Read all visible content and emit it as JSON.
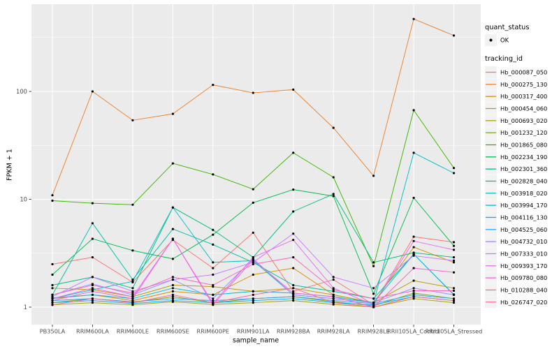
{
  "figure": {
    "legend": {
      "quant_status_title": "quant_status",
      "quant_status_items": [
        {
          "label": "OK"
        }
      ],
      "tracking_id_title": "tracking_id"
    }
  },
  "colors": {
    "page_bg": "#FFFFFF",
    "panel_bg": "#EBEBEB",
    "grid": "#FFFFFF",
    "tick_text": "#4D4D4D",
    "tick_mark": "#333333",
    "axis_text": "#000000",
    "legend_key_bg": "#F2F2F2",
    "point": "#000000"
  },
  "chart_data": {
    "type": "line",
    "title": "",
    "xlabel": "sample_name",
    "ylabel": "FPKM + 1",
    "y_scale": "log10",
    "ylim": [
      0.69,
      640
    ],
    "grid": "on",
    "legend_position": "right",
    "y_major_ticks": [
      1,
      10,
      100
    ],
    "y_major_tick_labels": [
      "1",
      "10",
      "100"
    ],
    "y_minor_gridlines": [
      3.162,
      31.623,
      316.228
    ],
    "point_marker": "black-dot",
    "categories": [
      "PB350LA",
      "RRIM600LA",
      "RRIM600LE",
      "RRIM600SE",
      "RRIM600PE",
      "RRIM901LA",
      "RRIM928BA",
      "RRIM928LA",
      "RRIM928LE",
      "RRII105LA_Control",
      "RRII105LA_Stressed"
    ],
    "series": [
      {
        "name": "Hb_000087_050",
        "color": "#F8766D",
        "values": [
          2.5,
          2.9,
          1.7,
          4.2,
          2.3,
          4.9,
          1.4,
          1.8,
          1.05,
          4.5,
          4.0
        ]
      },
      {
        "name": "Hb_000275_130",
        "color": "#EA8331",
        "values": [
          10.9,
          100,
          54,
          62,
          115,
          97,
          104,
          46,
          16.5,
          470,
          330
        ]
      },
      {
        "name": "Hb_000317_400",
        "color": "#D89000",
        "values": [
          1.2,
          1.3,
          1.15,
          1.4,
          1.3,
          2.0,
          2.3,
          1.3,
          1.1,
          3.6,
          2.6
        ]
      },
      {
        "name": "Hb_000454_060",
        "color": "#C09B00",
        "values": [
          1.5,
          1.45,
          1.25,
          1.6,
          1.55,
          1.4,
          1.5,
          1.3,
          1.1,
          1.76,
          1.5
        ]
      },
      {
        "name": "Hb_000693_020",
        "color": "#A3A500",
        "values": [
          1.05,
          1.1,
          1.05,
          1.12,
          1.06,
          1.1,
          1.15,
          1.06,
          1.0,
          1.2,
          1.1
        ]
      },
      {
        "name": "Hb_001232_120",
        "color": "#7CAE00",
        "values": [
          1.1,
          1.2,
          1.1,
          1.25,
          1.1,
          1.2,
          1.25,
          1.12,
          1.03,
          1.35,
          1.2
        ]
      },
      {
        "name": "Hb_001865_080",
        "color": "#39B600",
        "values": [
          9.7,
          9.2,
          8.9,
          21.5,
          17,
          12.4,
          27,
          16,
          2.4,
          67,
          19.5
        ]
      },
      {
        "name": "Hb_002234_190",
        "color": "#00BB4E",
        "values": [
          2.0,
          4.3,
          3.35,
          2.8,
          4.7,
          9.3,
          12.3,
          10.7,
          1.33,
          10.3,
          3.7
        ]
      },
      {
        "name": "Hb_002301_360",
        "color": "#00BF7D",
        "values": [
          1.6,
          1.9,
          1.5,
          8.4,
          5.2,
          2.9,
          7.7,
          11.2,
          2.6,
          3.2,
          2.9
        ]
      },
      {
        "name": "Hb_002828_040",
        "color": "#00C1A3",
        "values": [
          1.3,
          6.0,
          1.8,
          5.3,
          3.8,
          2.6,
          1.6,
          1.4,
          1.2,
          3.1,
          1.3
        ]
      },
      {
        "name": "Hb_003918_020",
        "color": "#00BFC4",
        "values": [
          1.2,
          1.45,
          1.73,
          8.4,
          2.6,
          2.7,
          1.3,
          1.2,
          1.1,
          27,
          17.5
        ]
      },
      {
        "name": "Hb_003994_170",
        "color": "#00BAE0",
        "values": [
          1.22,
          1.3,
          1.2,
          1.5,
          1.3,
          1.4,
          1.35,
          1.25,
          1.1,
          3.1,
          1.31
        ]
      },
      {
        "name": "Hb_004116_130",
        "color": "#00B0F6",
        "values": [
          1.1,
          1.15,
          1.08,
          1.15,
          1.1,
          1.15,
          1.2,
          1.1,
          1.05,
          1.25,
          1.15
        ]
      },
      {
        "name": "Hb_004525_060",
        "color": "#35A2FF",
        "values": [
          1.15,
          1.2,
          1.12,
          1.2,
          1.15,
          1.2,
          1.25,
          1.15,
          1.08,
          1.3,
          1.2
        ]
      },
      {
        "name": "Hb_004732_010",
        "color": "#9590FF",
        "values": [
          1.3,
          1.64,
          1.3,
          1.8,
          1.2,
          2.8,
          1.3,
          1.2,
          1.1,
          1.5,
          1.3
        ]
      },
      {
        "name": "Hb_007333_010",
        "color": "#C77CFF",
        "values": [
          1.25,
          1.9,
          1.4,
          1.8,
          2.0,
          2.6,
          4.8,
          1.9,
          1.5,
          3.0,
          2.7
        ]
      },
      {
        "name": "Hb_009393_170",
        "color": "#E76BF3",
        "values": [
          1.2,
          1.5,
          1.25,
          4.3,
          1.08,
          2.9,
          4.2,
          1.5,
          1.05,
          4.1,
          3.4
        ]
      },
      {
        "name": "Hb_009780_080",
        "color": "#FA62DB",
        "values": [
          1.15,
          1.4,
          1.2,
          4.3,
          1.05,
          2.75,
          1.35,
          1.25,
          1.0,
          2.3,
          2.1
        ]
      },
      {
        "name": "Hb_010288_040",
        "color": "#FF62BC",
        "values": [
          1.3,
          1.6,
          1.35,
          1.9,
          1.6,
          2.5,
          2.9,
          1.45,
          1.2,
          1.42,
          1.42
        ]
      },
      {
        "name": "Hb_026747_020",
        "color": "#FF6A98",
        "values": [
          1.05,
          1.2,
          1.1,
          1.3,
          1.1,
          1.3,
          1.5,
          1.1,
          1.0,
          1.25,
          1.15
        ]
      }
    ]
  }
}
